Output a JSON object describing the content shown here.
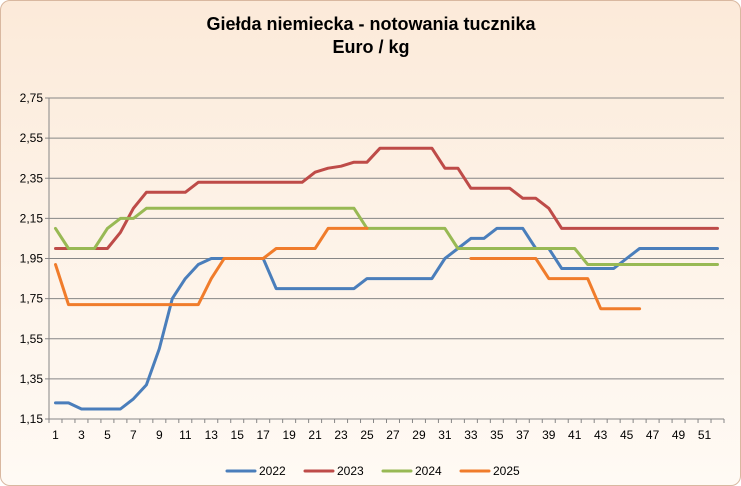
{
  "chart_data": {
    "type": "line",
    "title": "Giełda niemiecka  - notowania tucznika",
    "subtitle": "Euro / kg",
    "xlabel": "",
    "ylabel": "",
    "x_range": [
      1,
      52
    ],
    "ylim": [
      1.15,
      2.75
    ],
    "grid": true,
    "legend_position": "bottom",
    "x_tick_labels": [
      "1",
      "3",
      "5",
      "7",
      "9",
      "11",
      "13",
      "15",
      "17",
      "19",
      "21",
      "23",
      "25",
      "27",
      "29",
      "31",
      "33",
      "35",
      "37",
      "39",
      "41",
      "43",
      "45",
      "47",
      "49",
      "51"
    ],
    "y_tick_labels": [
      "1,15",
      "1,35",
      "1,55",
      "1,75",
      "1,95",
      "2,15",
      "2,35",
      "2,55",
      "2,75"
    ],
    "y_ticks": [
      1.15,
      1.35,
      1.55,
      1.75,
      1.95,
      2.15,
      2.35,
      2.55,
      2.75
    ],
    "series": [
      {
        "name": "2022",
        "color": "#4a7ebb",
        "x": [
          1,
          2,
          3,
          4,
          5,
          6,
          7,
          8,
          9,
          10,
          11,
          12,
          13,
          14,
          15,
          16,
          17,
          18,
          19,
          20,
          21,
          22,
          23,
          24,
          25,
          26,
          27,
          28,
          29,
          30,
          31,
          32,
          33,
          34,
          35,
          36,
          37,
          38,
          39,
          40,
          41,
          42,
          43,
          44,
          45,
          46,
          47,
          48,
          49,
          50,
          51,
          52
        ],
        "values": [
          1.23,
          1.23,
          1.2,
          1.2,
          1.2,
          1.2,
          1.25,
          1.32,
          1.5,
          1.75,
          1.85,
          1.92,
          1.95,
          1.95,
          1.95,
          1.95,
          1.95,
          1.8,
          1.8,
          1.8,
          1.8,
          1.8,
          1.8,
          1.8,
          1.85,
          1.85,
          1.85,
          1.85,
          1.85,
          1.85,
          1.95,
          2.0,
          2.05,
          2.05,
          2.1,
          2.1,
          2.1,
          2.0,
          2.0,
          1.9,
          1.9,
          1.9,
          1.9,
          1.9,
          1.95,
          2.0,
          2.0,
          2.0,
          2.0,
          2.0,
          2.0,
          2.0
        ]
      },
      {
        "name": "2023",
        "color": "#be4b48",
        "x": [
          1,
          2,
          3,
          4,
          5,
          6,
          7,
          8,
          9,
          10,
          11,
          12,
          13,
          14,
          15,
          16,
          17,
          18,
          19,
          20,
          21,
          22,
          23,
          24,
          25,
          26,
          27,
          28,
          29,
          30,
          31,
          32,
          33,
          34,
          35,
          36,
          37,
          38,
          39,
          40,
          41,
          42,
          43,
          44,
          45,
          46,
          47,
          48,
          49,
          50,
          51,
          52
        ],
        "values": [
          2.0,
          2.0,
          2.0,
          2.0,
          2.0,
          2.08,
          2.2,
          2.28,
          2.28,
          2.28,
          2.28,
          2.33,
          2.33,
          2.33,
          2.33,
          2.33,
          2.33,
          2.33,
          2.33,
          2.33,
          2.38,
          2.4,
          2.41,
          2.43,
          2.43,
          2.5,
          2.5,
          2.5,
          2.5,
          2.5,
          2.4,
          2.4,
          2.3,
          2.3,
          2.3,
          2.3,
          2.25,
          2.25,
          2.2,
          2.1,
          2.1,
          2.1,
          2.1,
          2.1,
          2.1,
          2.1,
          2.1,
          2.1,
          2.1,
          2.1,
          2.1,
          2.1
        ]
      },
      {
        "name": "2024",
        "color": "#98b954",
        "x": [
          1,
          2,
          3,
          4,
          5,
          6,
          7,
          8,
          9,
          10,
          11,
          12,
          13,
          14,
          15,
          16,
          17,
          18,
          19,
          20,
          21,
          22,
          23,
          24,
          25,
          26,
          27,
          28,
          29,
          30,
          31,
          32,
          33,
          34,
          35,
          36,
          37,
          38,
          39,
          40,
          41,
          42,
          43,
          44,
          45,
          46,
          47,
          48,
          49,
          50,
          51,
          52
        ],
        "values": [
          2.1,
          2.0,
          2.0,
          2.0,
          2.1,
          2.15,
          2.15,
          2.2,
          2.2,
          2.2,
          2.2,
          2.2,
          2.2,
          2.2,
          2.2,
          2.2,
          2.2,
          2.2,
          2.2,
          2.2,
          2.2,
          2.2,
          2.2,
          2.2,
          2.1,
          2.1,
          2.1,
          2.1,
          2.1,
          2.1,
          2.1,
          2.0,
          2.0,
          2.0,
          2.0,
          2.0,
          2.0,
          2.0,
          2.0,
          2.0,
          2.0,
          1.92,
          1.92,
          1.92,
          1.92,
          1.92,
          1.92,
          1.92,
          1.92,
          1.92,
          1.92,
          1.92
        ]
      },
      {
        "name": "2025",
        "color": "#f07c2b",
        "x": [
          1,
          2,
          3,
          4,
          5,
          6,
          7,
          8,
          9,
          10,
          11,
          12,
          13,
          14,
          15,
          16,
          17,
          18,
          19,
          20,
          21,
          22,
          23,
          24,
          25,
          26,
          27,
          28,
          29,
          30,
          31,
          32,
          33,
          34,
          35,
          36,
          37,
          38,
          39,
          40,
          41,
          42,
          43,
          44,
          45,
          46
        ],
        "values": [
          1.92,
          1.72,
          1.72,
          1.72,
          1.72,
          1.72,
          1.72,
          1.72,
          1.72,
          1.72,
          1.72,
          1.72,
          1.85,
          1.95,
          1.95,
          1.95,
          1.95,
          2.0,
          2.0,
          2.0,
          2.0,
          2.1,
          2.1,
          2.1,
          2.1,
          null,
          null,
          null,
          null,
          null,
          null,
          null,
          1.95,
          1.95,
          1.95,
          1.95,
          1.95,
          1.95,
          1.85,
          1.85,
          1.85,
          1.85,
          1.7,
          1.7,
          1.7,
          1.7
        ]
      }
    ]
  }
}
